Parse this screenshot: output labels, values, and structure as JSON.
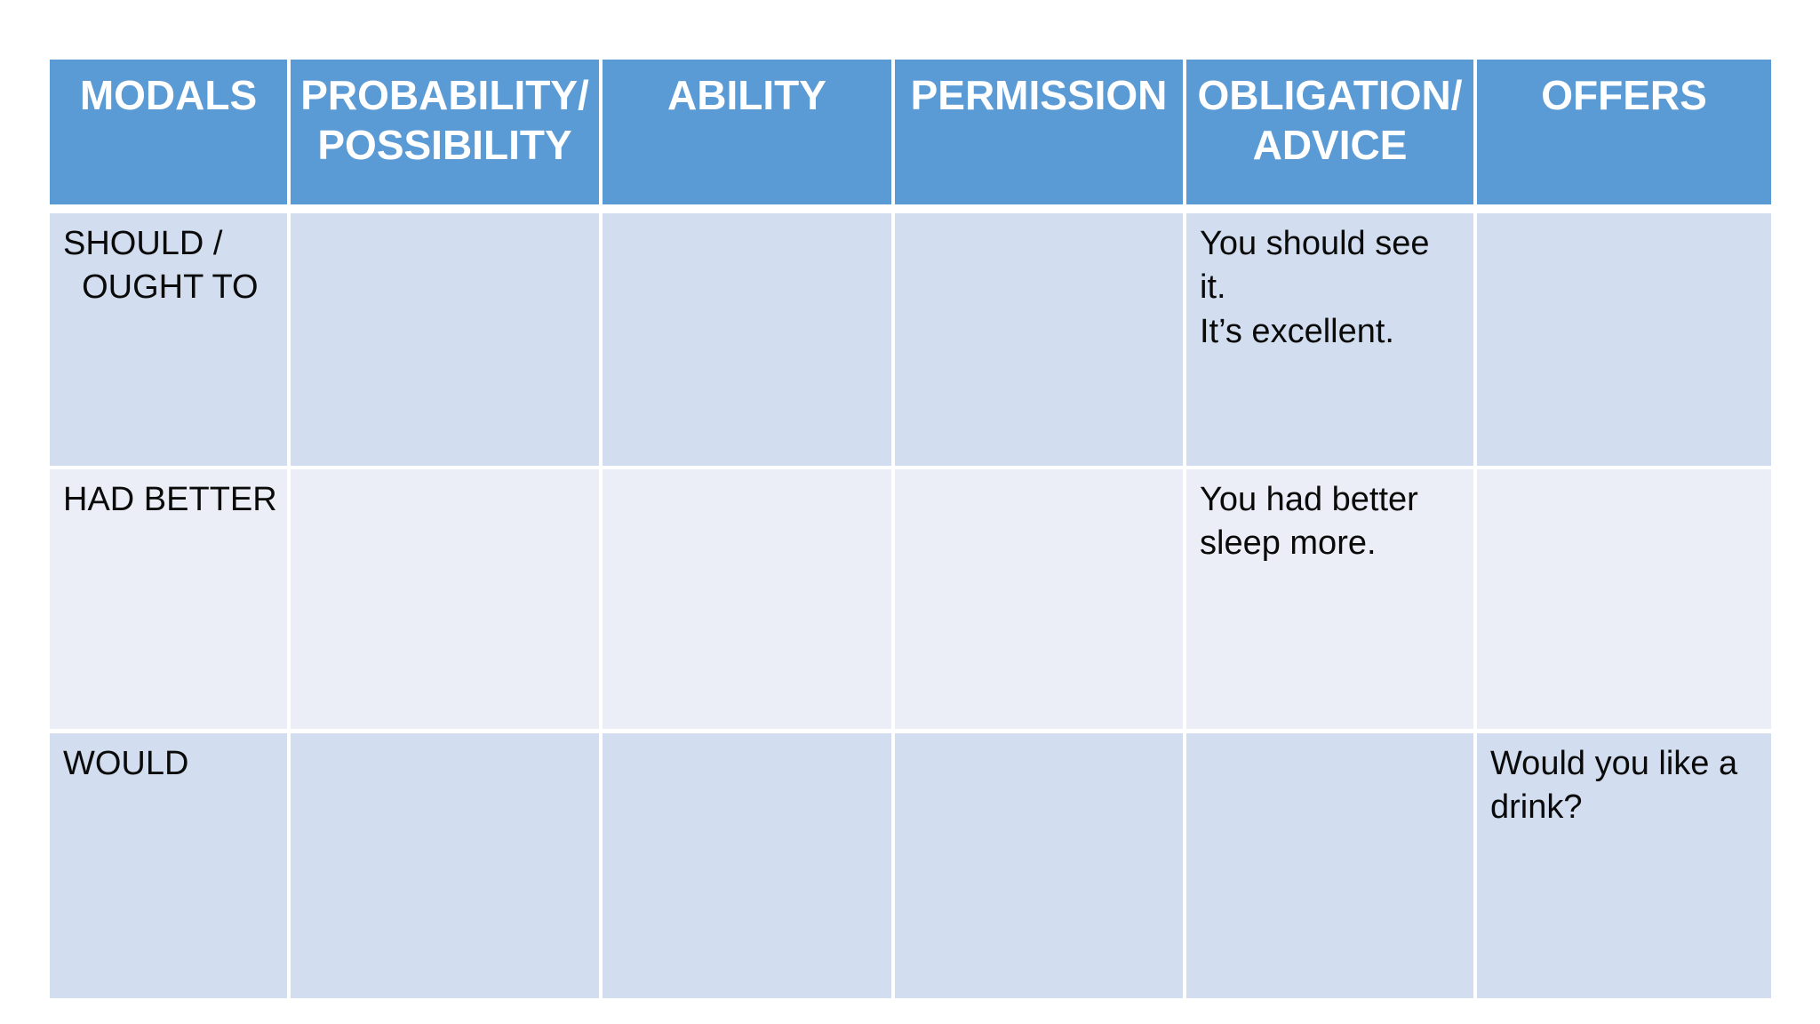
{
  "table": {
    "headers": [
      "MODALS",
      "PROBABILITY/\nPOSSIBILITY",
      "ABILITY",
      "PERMISSION",
      "OBLIGATION/\nADVICE",
      "OFFERS"
    ],
    "rows": [
      {
        "modal": "SHOULD /\n  OUGHT TO",
        "cells": [
          "",
          "",
          "",
          "You should see\nit.\nIt’s excellent.",
          ""
        ]
      },
      {
        "modal": "HAD BETTER",
        "cells": [
          "",
          "",
          "",
          "You had better\nsleep more.",
          ""
        ]
      },
      {
        "modal": "WOULD",
        "cells": [
          "",
          "",
          "",
          "",
          "Would you like a\ndrink?"
        ]
      }
    ],
    "colors": {
      "header_bg": "#5B9BD5",
      "header_text": "#FFFFFF",
      "band_dark": "#D2DEEF",
      "band_light": "#EBEEF6",
      "divider": "#FFFFFF",
      "body_text": "#0A0A0A",
      "page_bg": "#FFFFFF"
    }
  }
}
